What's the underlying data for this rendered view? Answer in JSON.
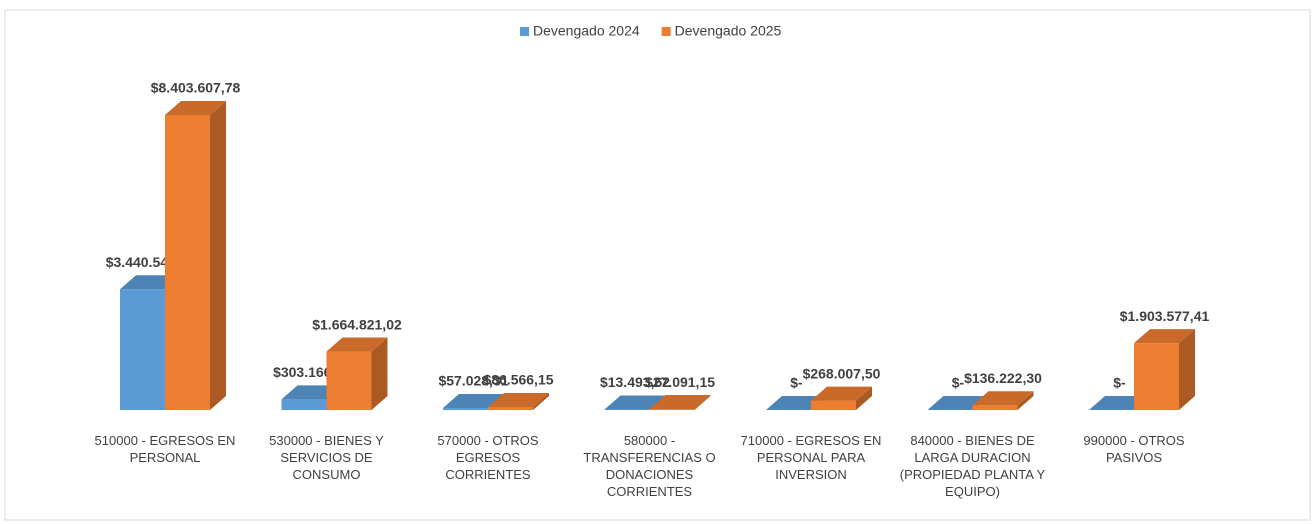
{
  "chart_data": {
    "type": "bar3d",
    "categories": [
      "510000 - EGRESOS EN PERSONAL",
      "530000 - BIENES Y SERVICIOS DE CONSUMO",
      "570000 - OTROS EGRESOS CORRIENTES",
      "580000 - TRANSFERENCIAS O DONACIONES CORRIENTES",
      "710000 - EGRESOS EN PERSONAL PARA INVERSION",
      "840000 - BIENES DE LARGA DURACION (PROPIEDAD PLANTA Y EQUIPO)",
      "990000 - OTROS PASIVOS"
    ],
    "series": [
      {
        "name": "Devengado 2024",
        "color": "#5b9bd5",
        "values": [
          3440546.38,
          303166.23,
          57028.31,
          13493.62,
          0,
          0,
          0
        ],
        "value_labels": [
          "$3.440.546,38",
          "$303.166,23",
          "$57.028,31",
          "$13.493,62",
          "$-",
          "$-",
          "$-"
        ]
      },
      {
        "name": "Devengado 2025",
        "color": "#ed7d31",
        "values": [
          8403607.78,
          1664821.02,
          86566.15,
          27091.15,
          268007.5,
          136222.3,
          1903577.41
        ],
        "value_labels": [
          "$8.403.607,78",
          "$1.664.821,02",
          "$86.566,15",
          "$27.091,15",
          "$268.007,50",
          "$136.222,30",
          "$1.903.577,41"
        ]
      }
    ],
    "legend": "top"
  }
}
